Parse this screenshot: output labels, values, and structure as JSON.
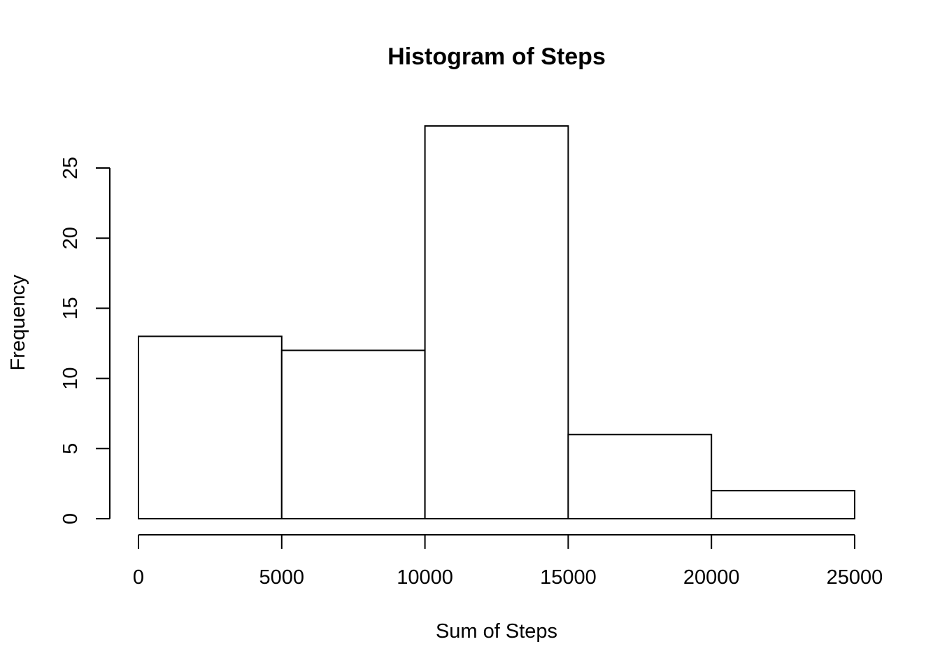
{
  "chart_data": {
    "type": "bar",
    "title": "Histogram of Steps",
    "xlabel": "Sum of Steps",
    "ylabel": "Frequency",
    "bins": [
      {
        "start": 0,
        "end": 5000,
        "count": 13
      },
      {
        "start": 5000,
        "end": 10000,
        "count": 12
      },
      {
        "start": 10000,
        "end": 15000,
        "count": 28
      },
      {
        "start": 15000,
        "end": 20000,
        "count": 6
      },
      {
        "start": 20000,
        "end": 25000,
        "count": 2
      }
    ],
    "x_ticks": [
      0,
      5000,
      10000,
      15000,
      20000,
      25000
    ],
    "y_ticks": [
      0,
      5,
      10,
      15,
      20,
      25
    ],
    "xlim": [
      0,
      25000
    ],
    "ylim": [
      0,
      28
    ],
    "grid": false,
    "colors": {
      "bar_fill": "#ffffff",
      "bar_stroke": "#000000"
    }
  }
}
